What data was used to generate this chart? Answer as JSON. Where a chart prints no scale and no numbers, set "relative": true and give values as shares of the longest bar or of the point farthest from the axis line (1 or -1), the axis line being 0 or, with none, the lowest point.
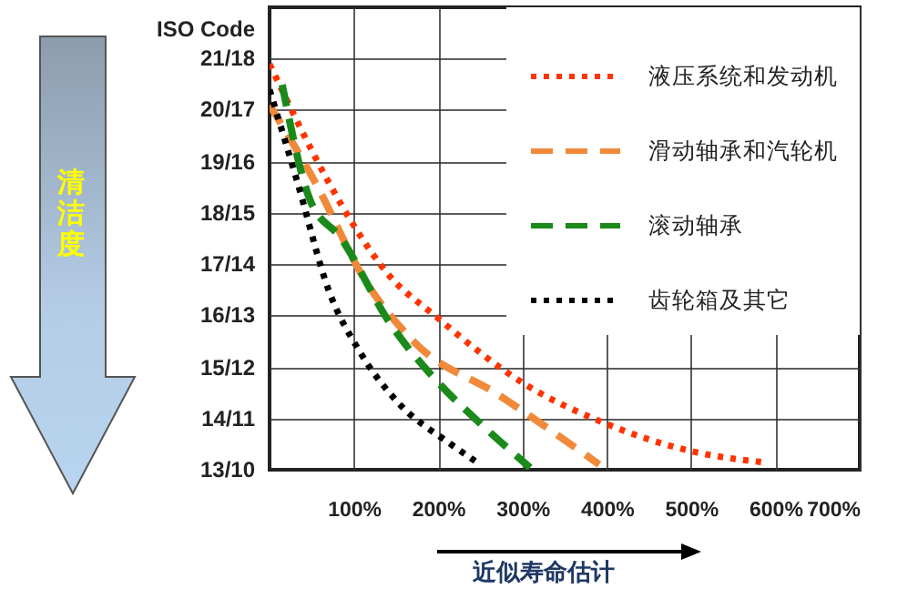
{
  "chart_data": {
    "type": "line",
    "xlabel": "近似寿命估计",
    "ylabel": "ISO Code",
    "annotations": [
      "清洁度",
      "21/18",
      "20/17",
      "19/16",
      "18/15",
      "17/14",
      "16/13",
      "15/12",
      "14/11",
      "13/10"
    ],
    "relative": true,
    "xlim": [
      0,
      700
    ],
    "xticks": [
      {
        "value": 100,
        "label": "100%"
      },
      {
        "value": 200,
        "label": "200%"
      },
      {
        "value": 300,
        "label": "300%"
      },
      {
        "value": 400,
        "label": "400%"
      },
      {
        "value": 500,
        "label": "500%"
      },
      {
        "value": 600,
        "label": "600%"
      },
      {
        "value": 700,
        "label": "700%"
      }
    ],
    "grid": true,
    "legend": "top right",
    "series": [
      {
        "name": "液压系统和发动机",
        "color": "#ff3300",
        "line_style": "dotted",
        "x": [
          0,
          70,
          102,
          141,
          196,
          309,
          389,
          504,
          587
        ],
        "values": [
          1,
          0.709,
          0.595,
          0.481,
          0.38,
          0.203,
          0.122,
          0.044,
          0.018
        ]
      },
      {
        "name": "滑动轴承和汽轮机",
        "color": "#f08a3a",
        "line_style": "dashed",
        "x": [
          0,
          54,
          113,
          171,
          272,
          391
        ],
        "values": [
          0.899,
          0.709,
          0.468,
          0.316,
          0.184,
          0.013
        ]
      },
      {
        "name": "滚动轴承",
        "color": "#1a8a1a",
        "line_style": "dashed",
        "x": [
          15,
          48,
          85,
          141,
          200,
          250,
          309
        ],
        "values": [
          0.949,
          0.665,
          0.57,
          0.367,
          0.215,
          0.114,
          0.005
        ]
      },
      {
        "name": "齿轮箱及其它",
        "color": "#000000",
        "line_style": "dotted",
        "x": [
          0,
          33,
          70,
          107,
          150,
          215,
          250
        ],
        "values": [
          0.937,
          0.709,
          0.443,
          0.291,
          0.171,
          0.063,
          0.013
        ]
      }
    ]
  }
}
